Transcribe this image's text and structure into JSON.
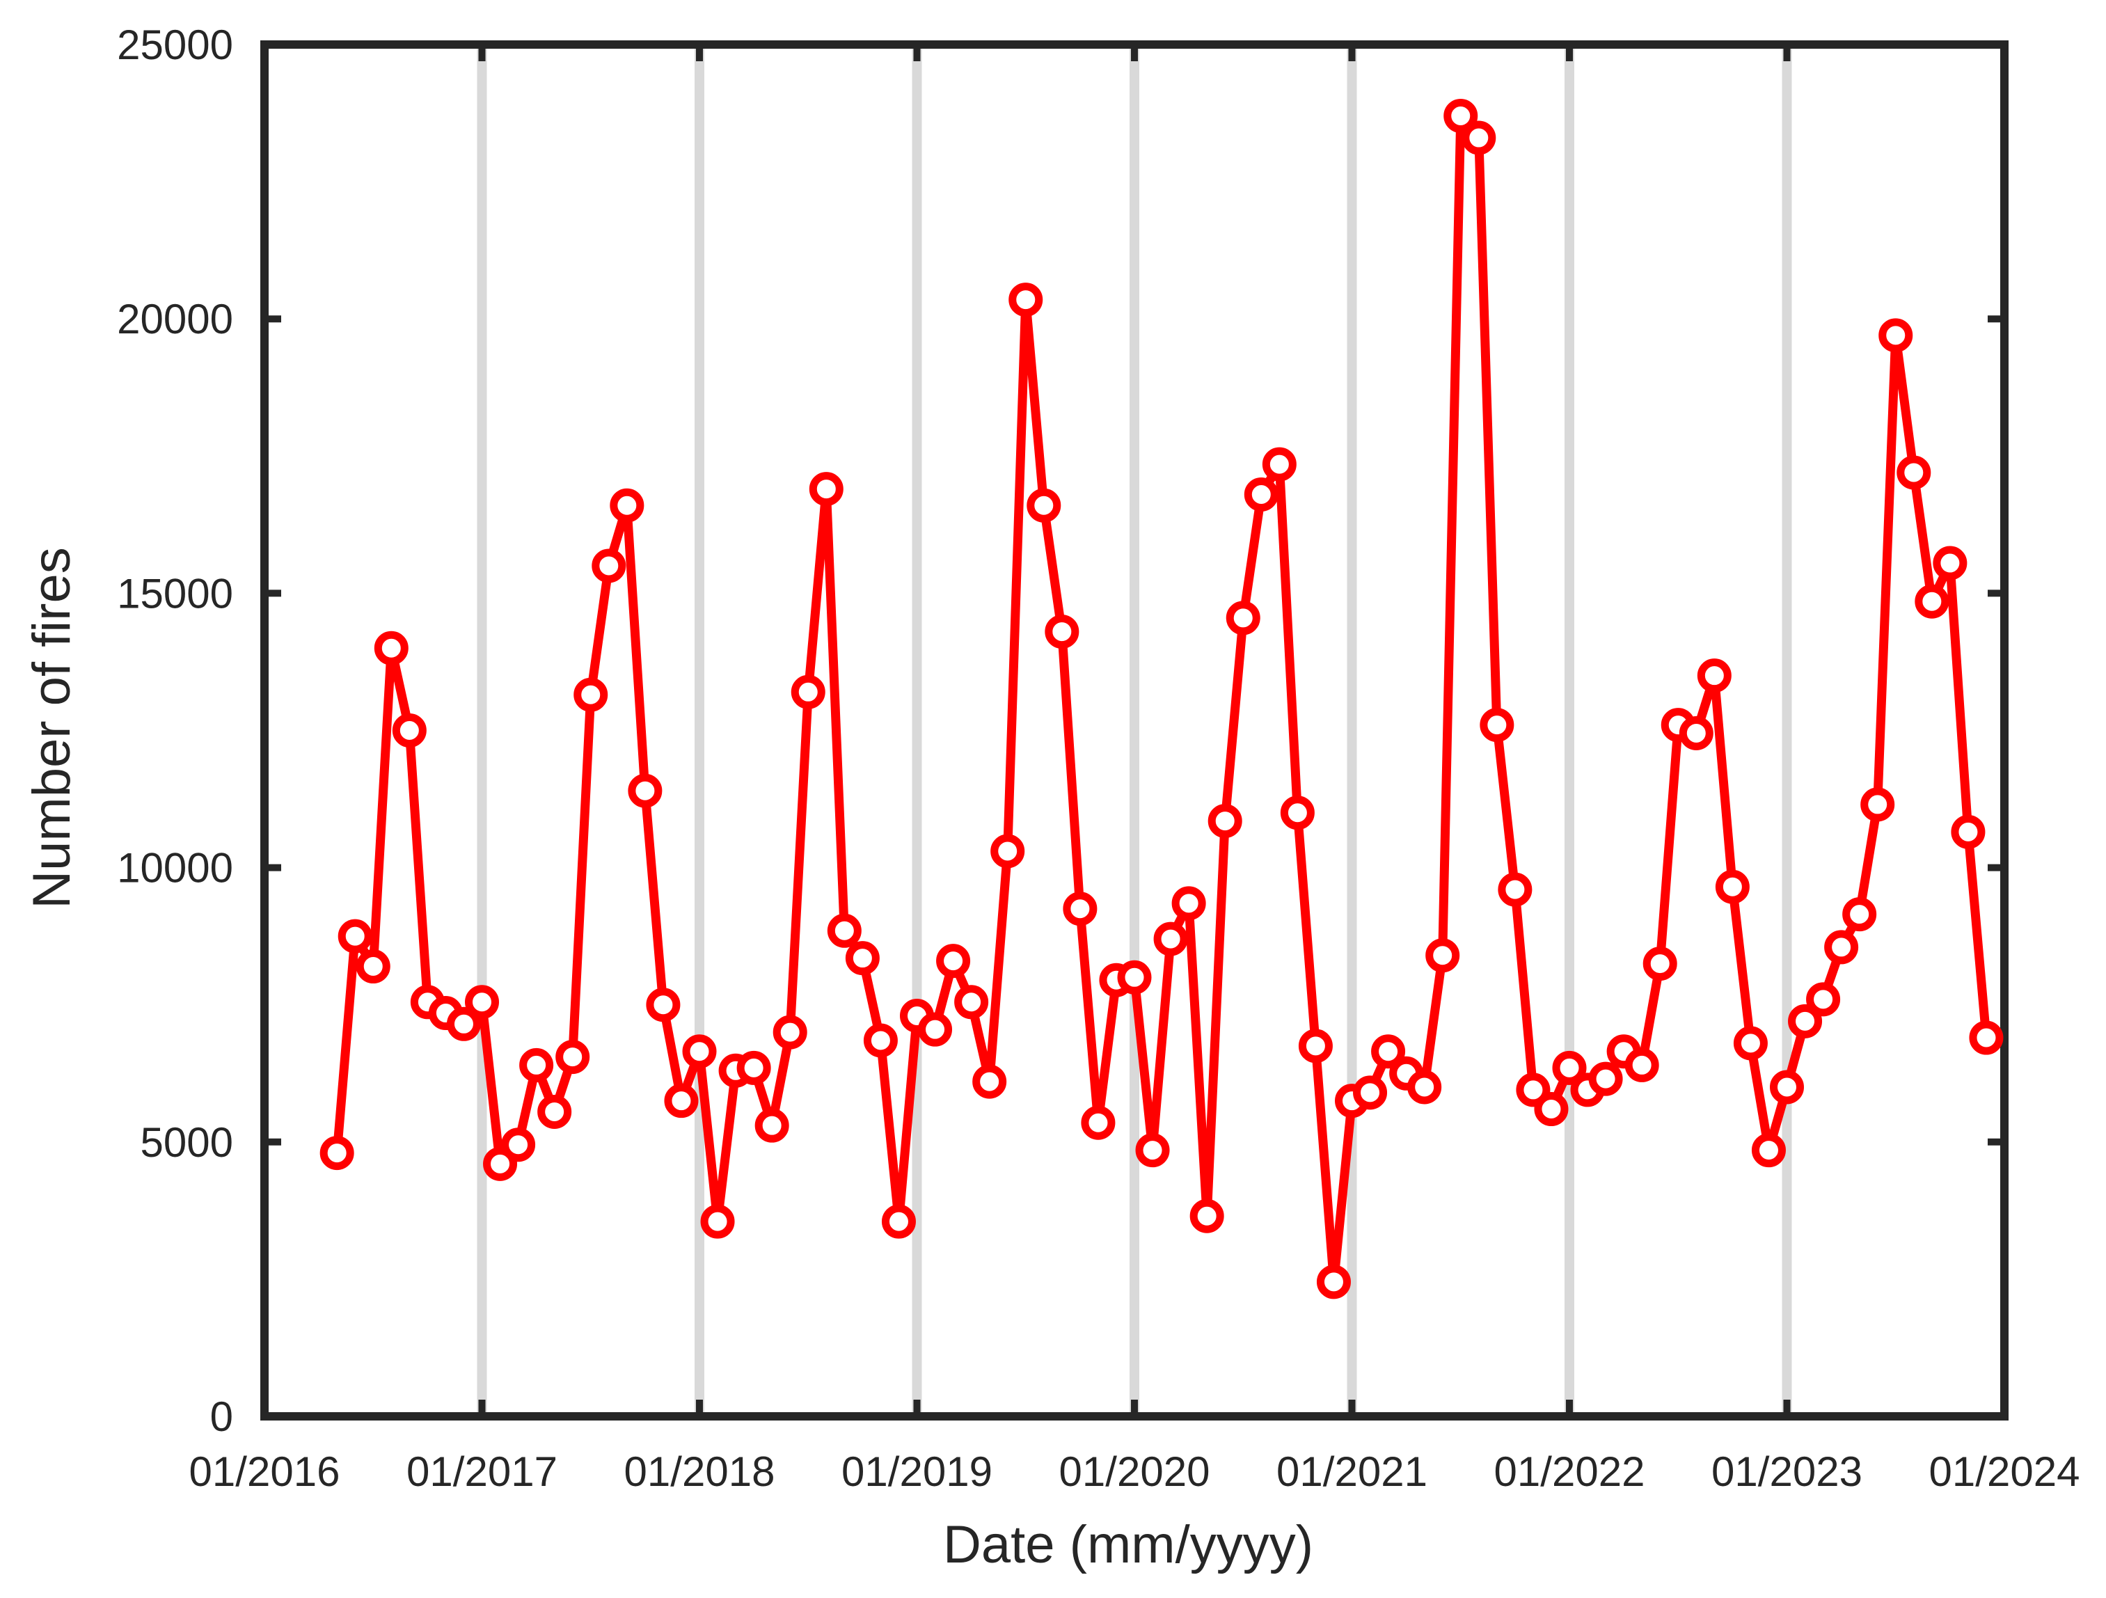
{
  "chart_data": {
    "type": "line",
    "title": "",
    "xlabel": "Date (mm/yyyy)",
    "ylabel": "Number of fires",
    "x_ticks": [
      "01/2016",
      "01/2017",
      "01/2018",
      "01/2019",
      "01/2020",
      "01/2021",
      "01/2022",
      "01/2023",
      "01/2024"
    ],
    "y_ticks": [
      "0",
      "5000",
      "10000",
      "15000",
      "20000",
      "25000"
    ],
    "ylim": [
      0,
      25000
    ],
    "xlim": [
      "01/2016",
      "01/2024"
    ],
    "grid": "vertical lines at x ticks",
    "colors": {
      "series": "#ff0000",
      "grid": "#d9d9d9",
      "axes": "#262626"
    },
    "marker": "open circle",
    "series": [
      {
        "x": [
          "05/2016",
          "06/2016",
          "07/2016",
          "08/2016",
          "09/2016",
          "10/2016",
          "11/2016",
          "12/2016",
          "01/2017",
          "02/2017",
          "03/2017",
          "04/2017",
          "05/2017",
          "06/2017",
          "07/2017",
          "08/2017",
          "09/2017",
          "10/2017",
          "11/2017",
          "12/2017",
          "01/2018",
          "02/2018",
          "03/2018",
          "04/2018",
          "05/2018",
          "06/2018",
          "07/2018",
          "08/2018",
          "09/2018",
          "10/2018",
          "11/2018",
          "12/2018",
          "01/2019",
          "02/2019",
          "03/2019",
          "04/2019",
          "05/2019",
          "06/2019",
          "07/2019",
          "08/2019",
          "09/2019",
          "10/2019",
          "11/2019",
          "12/2019",
          "01/2020",
          "02/2020",
          "03/2020",
          "04/2020",
          "05/2020",
          "06/2020",
          "07/2020",
          "08/2020",
          "09/2020",
          "10/2020",
          "11/2020",
          "12/2020",
          "01/2021",
          "02/2021",
          "03/2021",
          "04/2021",
          "05/2021",
          "06/2021",
          "07/2021",
          "08/2021",
          "09/2021",
          "10/2021",
          "11/2021",
          "12/2021",
          "01/2022",
          "02/2022",
          "03/2022",
          "04/2022",
          "05/2022",
          "06/2022",
          "07/2022",
          "08/2022",
          "09/2022",
          "10/2022",
          "11/2022",
          "12/2022",
          "01/2023",
          "02/2023",
          "03/2023",
          "04/2023",
          "05/2023",
          "06/2023",
          "07/2023",
          "08/2023",
          "09/2023",
          "10/2023",
          "11/2023",
          "12/2023"
        ],
        "values": [
          4800,
          8750,
          8200,
          14000,
          12500,
          7550,
          7350,
          7150,
          7550,
          4600,
          4950,
          6400,
          5550,
          6550,
          13150,
          15500,
          16600,
          11400,
          7500,
          5750,
          6650,
          3550,
          6300,
          6350,
          5300,
          7000,
          13200,
          16900,
          8850,
          8350,
          6850,
          3550,
          7300,
          7050,
          8300,
          7550,
          6100,
          10300,
          20350,
          16600,
          14300,
          9250,
          5350,
          7950,
          8000,
          4850,
          8700,
          9350,
          3650,
          10850,
          14550,
          16800,
          17350,
          11000,
          6750,
          2450,
          5750,
          5900,
          6650,
          6250,
          6000,
          8400,
          23700,
          23300,
          12600,
          9600,
          5950,
          5600,
          6350,
          5950,
          6150,
          6650,
          6400,
          8250,
          12600,
          12450,
          13500,
          9650,
          6800,
          4850,
          6000,
          7200,
          7600,
          8550,
          9150,
          11150,
          19700,
          17200,
          14850,
          15550,
          10650,
          6900
        ]
      }
    ]
  }
}
